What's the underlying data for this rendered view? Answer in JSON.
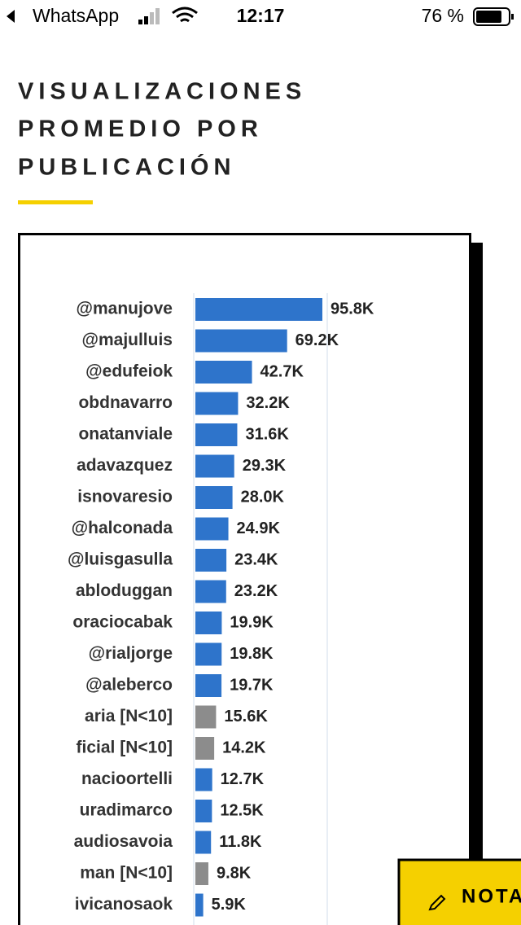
{
  "status_bar": {
    "back_app": "WhatsApp",
    "time": "12:17",
    "battery": "76 %"
  },
  "header": {
    "title_lines": [
      "VISUALIZACIONES",
      "PROMEDIO POR",
      "PUBLICACIÓN"
    ]
  },
  "chart_data": {
    "type": "hbar",
    "categories": [
      "@manujove",
      "@majulluis",
      "@edufeiok",
      "obdnavarro",
      "onatanviale",
      "adavazquez",
      "isnovaresio",
      "@halconada",
      "@luisgasulla",
      "abloduggan",
      "oraciocabak",
      "@rialjorge",
      "@aleberco",
      "aria [N<10]",
      "ficial [N<10]",
      "nacioortelli",
      "uradimarco",
      "audiosavoia",
      "man [N<10]",
      "ivicanosaok"
    ],
    "values": [
      95800,
      69200,
      42700,
      32200,
      31600,
      29300,
      28000,
      24900,
      23400,
      23200,
      19900,
      19800,
      19700,
      15600,
      14200,
      12700,
      12500,
      11800,
      9800,
      5900
    ],
    "value_labels": [
      "95.8K",
      "69.2K",
      "42.7K",
      "32.2K",
      "31.6K",
      "29.3K",
      "28.0K",
      "24.9K",
      "23.4K",
      "23.2K",
      "19.9K",
      "19.8K",
      "19.7K",
      "15.6K",
      "14.2K",
      "12.7K",
      "12.5K",
      "11.8K",
      "9.8K",
      "5.9K"
    ],
    "colors": [
      "#2e74cb",
      "#2e74cb",
      "#2e74cb",
      "#2e74cb",
      "#2e74cb",
      "#2e74cb",
      "#2e74cb",
      "#2e74cb",
      "#2e74cb",
      "#2e74cb",
      "#2e74cb",
      "#2e74cb",
      "#2e74cb",
      "#8c8c8c",
      "#8c8c8c",
      "#2e74cb",
      "#2e74cb",
      "#2e74cb",
      "#8c8c8c",
      "#2e74cb"
    ]
  },
  "button": {
    "label": "NOTA"
  }
}
